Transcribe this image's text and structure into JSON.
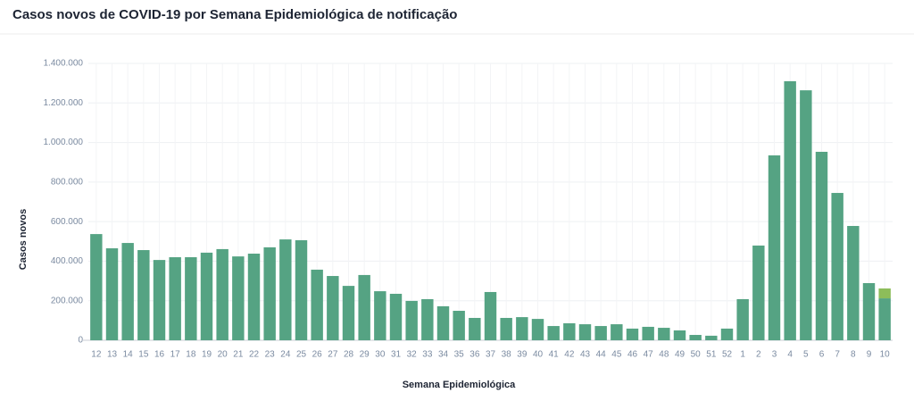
{
  "chart_data": {
    "type": "bar",
    "title": "Casos novos de COVID-19 por Semana Epidemiológica de notificação",
    "x_label": "Semana Epidemiológica",
    "y_label": "Casos novos",
    "categories": [
      "12",
      "13",
      "14",
      "15",
      "16",
      "17",
      "18",
      "19",
      "20",
      "21",
      "22",
      "23",
      "24",
      "25",
      "26",
      "27",
      "28",
      "29",
      "30",
      "31",
      "32",
      "33",
      "34",
      "35",
      "36",
      "37",
      "38",
      "39",
      "40",
      "41",
      "42",
      "43",
      "44",
      "45",
      "46",
      "47",
      "48",
      "49",
      "50",
      "51",
      "52",
      "1",
      "2",
      "3",
      "4",
      "5",
      "6",
      "7",
      "8",
      "9",
      "10"
    ],
    "series": [
      {
        "color": "#55a383",
        "values": [
          537000,
          465000,
          492000,
          456000,
          406000,
          420000,
          420000,
          443000,
          461000,
          424000,
          438000,
          470000,
          510000,
          506000,
          357000,
          325000,
          275000,
          330000,
          248000,
          235000,
          199000,
          208000,
          172000,
          149000,
          113000,
          244000,
          113000,
          117000,
          108000,
          72000,
          86000,
          81000,
          72000,
          81000,
          59000,
          68000,
          63000,
          50000,
          27000,
          23000,
          59000,
          208000,
          479000,
          935000,
          1310000,
          1264000,
          953000,
          745000,
          578000,
          289000,
          212000
        ]
      },
      {
        "color": "#8dbd5a",
        "values": [
          null,
          null,
          null,
          null,
          null,
          null,
          null,
          null,
          null,
          null,
          null,
          null,
          null,
          null,
          null,
          null,
          null,
          null,
          null,
          null,
          null,
          null,
          null,
          null,
          null,
          null,
          null,
          null,
          null,
          null,
          null,
          null,
          null,
          null,
          null,
          null,
          null,
          null,
          null,
          null,
          null,
          null,
          null,
          null,
          null,
          null,
          null,
          null,
          null,
          null,
          50000
        ]
      }
    ],
    "stacked": true,
    "ylim": [
      0,
      1400000
    ],
    "yticks": [
      0,
      {
        "value": 200000,
        "label": "200.000"
      },
      {
        "value": 400000,
        "label": "400.000"
      },
      {
        "value": 600000,
        "label": "600.000"
      },
      {
        "value": 800000,
        "label": "800.000"
      },
      {
        "value": 1000000,
        "label": "1.000.000"
      },
      {
        "value": 1200000,
        "label": "1.200.000"
      },
      {
        "value": 1400000,
        "label": "1.400.000"
      }
    ],
    "grid": true
  }
}
